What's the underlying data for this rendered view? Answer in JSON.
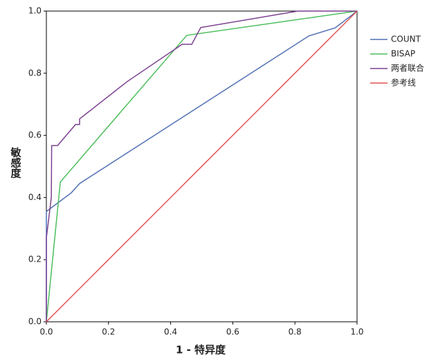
{
  "chart_data": {
    "type": "line",
    "xlabel": "1 - 特异度",
    "ylabel": "敏感度",
    "xlim": [
      0,
      1
    ],
    "ylim": [
      0,
      1
    ],
    "xticks": [
      {
        "value": 0,
        "label": "0.0"
      },
      {
        "value": 0.2,
        "label": "0.2"
      },
      {
        "value": 0.4,
        "label": "0.4"
      },
      {
        "value": 0.6,
        "label": "0.6"
      },
      {
        "value": 0.8,
        "label": "0.8"
      },
      {
        "value": 1,
        "label": "1.0"
      }
    ],
    "yticks": [
      {
        "value": 0,
        "label": "0.0"
      },
      {
        "value": 0.2,
        "label": "0.2"
      },
      {
        "value": 0.4,
        "label": "0.4"
      },
      {
        "value": 0.6,
        "label": "0.6"
      },
      {
        "value": 0.8,
        "label": "0.8"
      },
      {
        "value": 1,
        "label": "1.0"
      }
    ],
    "legend": "right",
    "series": [
      {
        "name": "COUNT",
        "color": "#4f6fb5",
        "x": [
          0,
          0,
          0.04,
          0.08,
          0.107,
          0.845,
          0.93,
          1
        ],
        "values": [
          0,
          0.355,
          0.385,
          0.415,
          0.445,
          0.92,
          0.946,
          1
        ]
      },
      {
        "name": "BISAP",
        "color": "#4cbf5c",
        "x": [
          0,
          0.045,
          0.452,
          1
        ],
        "values": [
          0,
          0.45,
          0.922,
          1
        ]
      },
      {
        "name": "两者联合",
        "color": "#7b3f8f",
        "x": [
          0,
          0,
          0.016,
          0.017,
          0.036,
          0.094,
          0.107,
          0.107,
          0.26,
          0.437,
          0.468,
          0.497,
          0.81,
          1
        ],
        "values": [
          0,
          0.27,
          0.4,
          0.567,
          0.567,
          0.635,
          0.635,
          0.653,
          0.773,
          0.893,
          0.893,
          0.947,
          1,
          1
        ]
      },
      {
        "name": "参考线",
        "color": "#e05050",
        "x": [
          0,
          1
        ],
        "values": [
          0,
          1
        ]
      }
    ]
  }
}
